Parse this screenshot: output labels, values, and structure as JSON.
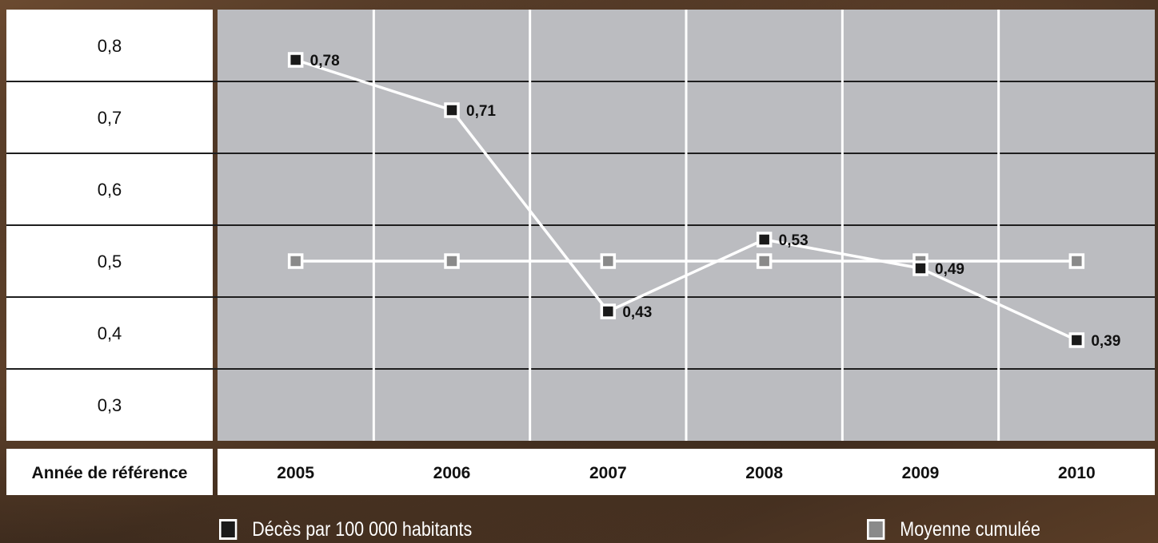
{
  "chart_data": {
    "type": "line",
    "x_header": "Année de référence",
    "categories": [
      "2005",
      "2006",
      "2007",
      "2008",
      "2009",
      "2010"
    ],
    "ylim": [
      0.25,
      0.85
    ],
    "y_ticks": [
      0.8,
      0.7,
      0.6,
      0.5,
      0.4,
      0.3
    ],
    "y_tick_labels": [
      "0,8",
      "0,7",
      "0,6",
      "0,5",
      "0,4",
      "0,3"
    ],
    "grid": true,
    "legend_position": "bottom",
    "series": [
      {
        "name": "Décès par 100 000 habitants",
        "values": [
          0.78,
          0.71,
          0.43,
          0.53,
          0.49,
          0.39
        ],
        "data_labels": [
          "0,78",
          "0,71",
          "0,43",
          "0,53",
          "0,49",
          "0,39"
        ],
        "marker_color": "#1a1a1a",
        "line_color": "#ffffff"
      },
      {
        "name": "Moyenne cumulée",
        "values": [
          0.5,
          0.5,
          0.5,
          0.5,
          0.5,
          0.5
        ],
        "marker_color": "#8a8a8a",
        "line_color": "#ffffff"
      }
    ],
    "colors": {
      "plot_background": "#bbbcc0",
      "axis_panel": "#ffffff",
      "gridline": "#1e1e1e",
      "text": "#111111"
    }
  }
}
